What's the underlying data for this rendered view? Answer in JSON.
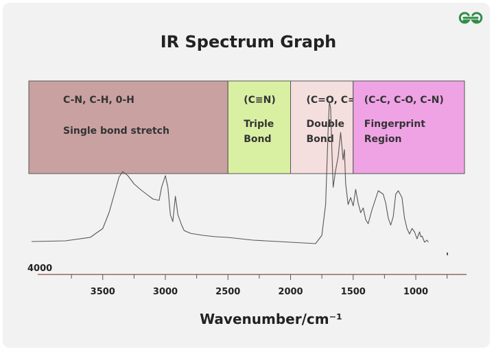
{
  "logo": {
    "icon": "geeksforgeeks-logo-icon",
    "color": "#2f8d46"
  },
  "chart_data": {
    "type": "line",
    "title": "IR Spectrum Graph",
    "xlabel": "Wavenumber/cm⁻¹",
    "x_reversed": true,
    "xlim": [
      4000,
      650
    ],
    "edge_label": "4000",
    "ticks": [
      3500,
      3000,
      2500,
      2000,
      1500,
      1000
    ],
    "tick_labels": [
      "3500",
      "3000",
      "2500",
      "2000",
      "1500",
      "1000"
    ],
    "regions": [
      {
        "from": 4000,
        "to": 2500,
        "color": "#c9a1a1",
        "label1": "C-N, C-H, 0-H",
        "label2": "Single bond stretch",
        "label3": ""
      },
      {
        "from": 2500,
        "to": 2000,
        "color": "#d9f0a3",
        "label1": "(C≡N)",
        "label2": "Triple",
        "label3": "Bond"
      },
      {
        "from": 2000,
        "to": 1500,
        "color": "#f4dede",
        "label1": "(C=O, C=N)",
        "label2": "Double",
        "label3": "Bond"
      },
      {
        "from": 1500,
        "to": 650,
        "color": "#efa3e5",
        "label1": "(C-C, C-O, C-N)",
        "label2": "Fingerprint",
        "label3": "Region"
      }
    ],
    "series": [
      {
        "x": [
          4000,
          3800,
          3600,
          3500,
          3450,
          3400,
          3370,
          3340,
          3300,
          3250,
          3200,
          3150,
          3100,
          3050,
          3030,
          3000,
          2980,
          2960,
          2940,
          2920,
          2900,
          2870,
          2850,
          2800,
          2700,
          2600,
          2500,
          2400,
          2300,
          2200,
          2100,
          2000,
          1900,
          1800,
          1750,
          1720,
          1700,
          1690,
          1680,
          1670,
          1660,
          1640,
          1620,
          1600,
          1580,
          1570,
          1560,
          1540,
          1520,
          1500,
          1480,
          1460,
          1440,
          1420,
          1400,
          1380,
          1350,
          1300,
          1260,
          1240,
          1220,
          1200,
          1180,
          1160,
          1140,
          1110,
          1090,
          1070,
          1050,
          1030,
          1010,
          990,
          970,
          960,
          950,
          930,
          910,
          900
        ],
        "y": [
          6,
          7,
          12,
          25,
          48,
          80,
          100,
          108,
          102,
          90,
          82,
          75,
          68,
          66,
          85,
          102,
          85,
          45,
          35,
          72,
          45,
          30,
          22,
          18,
          15,
          13,
          12,
          10,
          8,
          7,
          6,
          5,
          4,
          3,
          15,
          60,
          170,
          210,
          200,
          140,
          85,
          110,
          130,
          165,
          125,
          140,
          90,
          60,
          70,
          58,
          82,
          62,
          48,
          55,
          38,
          32,
          52,
          80,
          75,
          62,
          40,
          30,
          42,
          75,
          80,
          70,
          40,
          25,
          17,
          25,
          20,
          10,
          20,
          13,
          14,
          5,
          8,
          5
        ]
      }
    ],
    "line_color": "#555555",
    "region_label_color": "#333333"
  }
}
